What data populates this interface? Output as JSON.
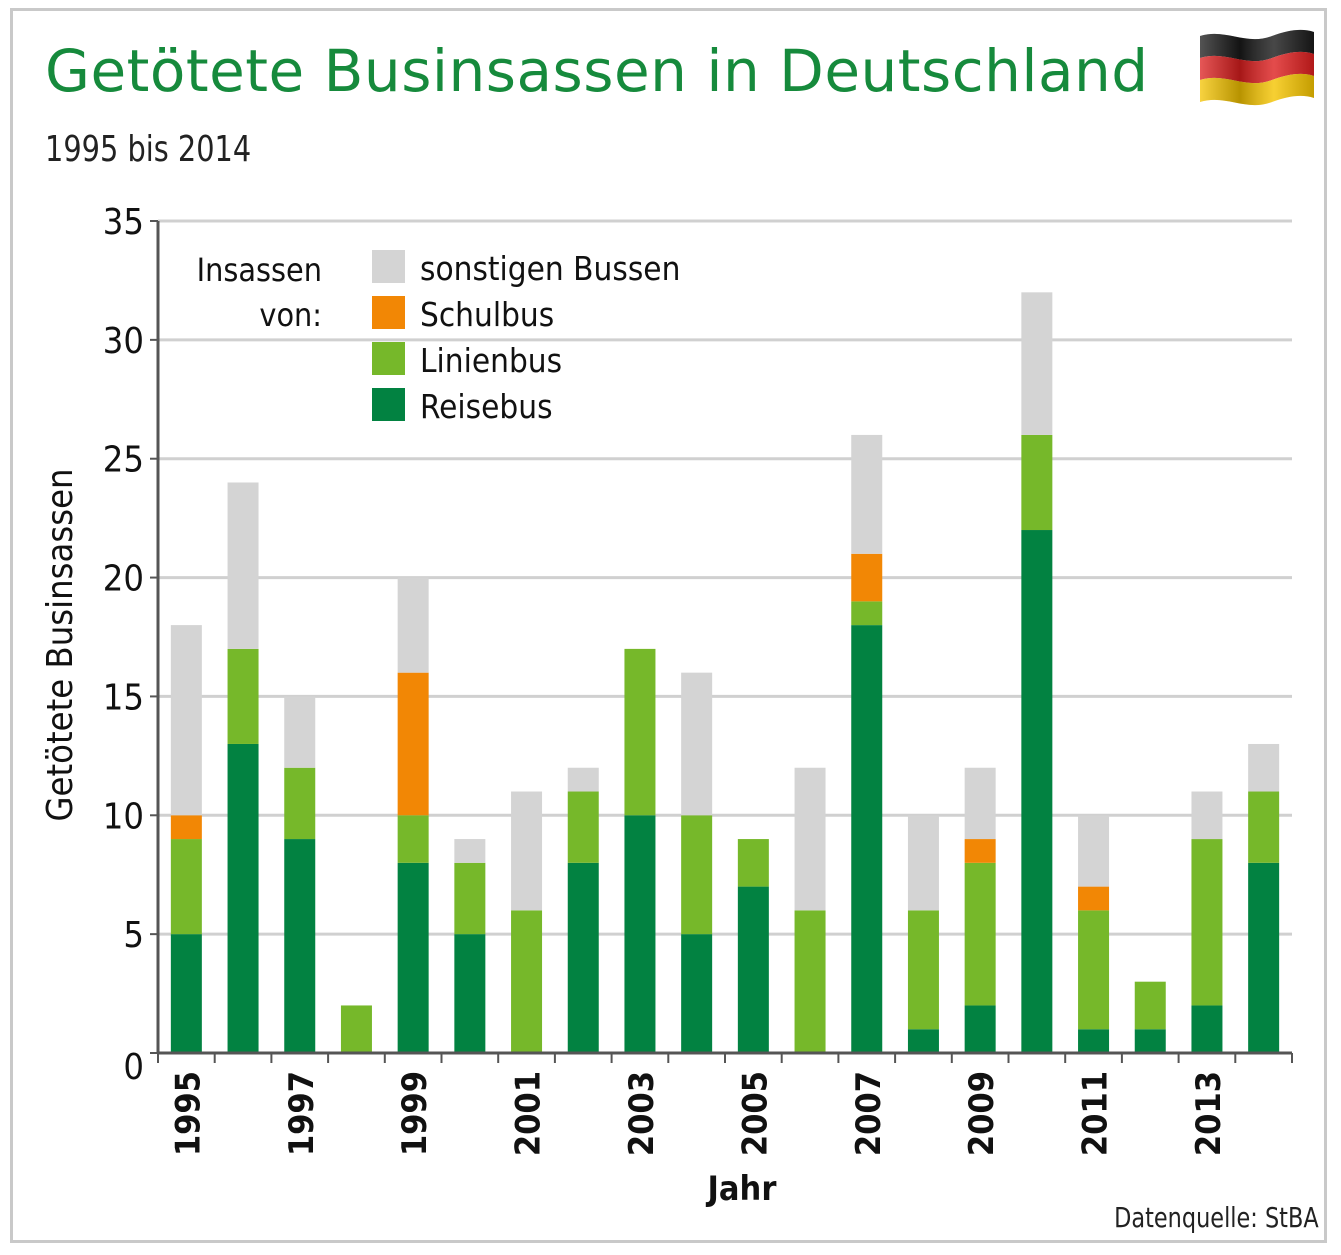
{
  "title": "Getötete Businsassen in Deutschland",
  "subtitle": "1995 bis 2014",
  "source": "Datenquelle: StBA",
  "legend_heading": [
    "Insassen",
    "von:"
  ],
  "colors": {
    "reisebus": "#028241",
    "linienbus": "#76b82a",
    "schulbus": "#f28705",
    "sonstige": "#d4d4d4",
    "grid": "#d0d0d0",
    "axis": "#555555"
  },
  "chart_data": {
    "type": "bar",
    "stacked": true,
    "title": "Getötete Businsassen in Deutschland",
    "subtitle": "1995 bis 2014",
    "xlabel": "Jahr",
    "ylabel": "Getötete Businsassen",
    "ylim": [
      0,
      35
    ],
    "yticks": [
      0,
      5,
      10,
      15,
      20,
      25,
      30,
      35
    ],
    "categories": [
      "1995",
      "1996",
      "1997",
      "1998",
      "1999",
      "2000",
      "2001",
      "2002",
      "2003",
      "2004",
      "2005",
      "2006",
      "2007",
      "2008",
      "2009",
      "2010",
      "2011",
      "2012",
      "2013",
      "2014"
    ],
    "xtick_labels": [
      "1995",
      "1997",
      "1999",
      "2001",
      "2003",
      "2005",
      "2007",
      "2009",
      "2011",
      "2013"
    ],
    "series": [
      {
        "name": "Reisebus",
        "key": "reisebus",
        "values": [
          5,
          13,
          9,
          0,
          8,
          5,
          0,
          8,
          10,
          5,
          7,
          0,
          18,
          1,
          2,
          22,
          1,
          1,
          2,
          8
        ]
      },
      {
        "name": "Linienbus",
        "key": "linienbus",
        "values": [
          4,
          4,
          3,
          2,
          2,
          3,
          6,
          3,
          7,
          5,
          2,
          6,
          1,
          5,
          6,
          4,
          5,
          2,
          7,
          3
        ]
      },
      {
        "name": "Schulbus",
        "key": "schulbus",
        "values": [
          1,
          0,
          0,
          0,
          6,
          0,
          0,
          0,
          0,
          0,
          0,
          0,
          2,
          0,
          1,
          0,
          1,
          0,
          0,
          0
        ]
      },
      {
        "name": "sonstigen Bussen",
        "key": "sonstige",
        "values": [
          8,
          7,
          3,
          0,
          4,
          1,
          5,
          1,
          0,
          6,
          0,
          6,
          5,
          4,
          3,
          6,
          3,
          0,
          2,
          2
        ]
      }
    ],
    "legend_order": [
      "sonstigen Bussen",
      "Schulbus",
      "Linienbus",
      "Reisebus"
    ],
    "legend_position": "top-left"
  }
}
